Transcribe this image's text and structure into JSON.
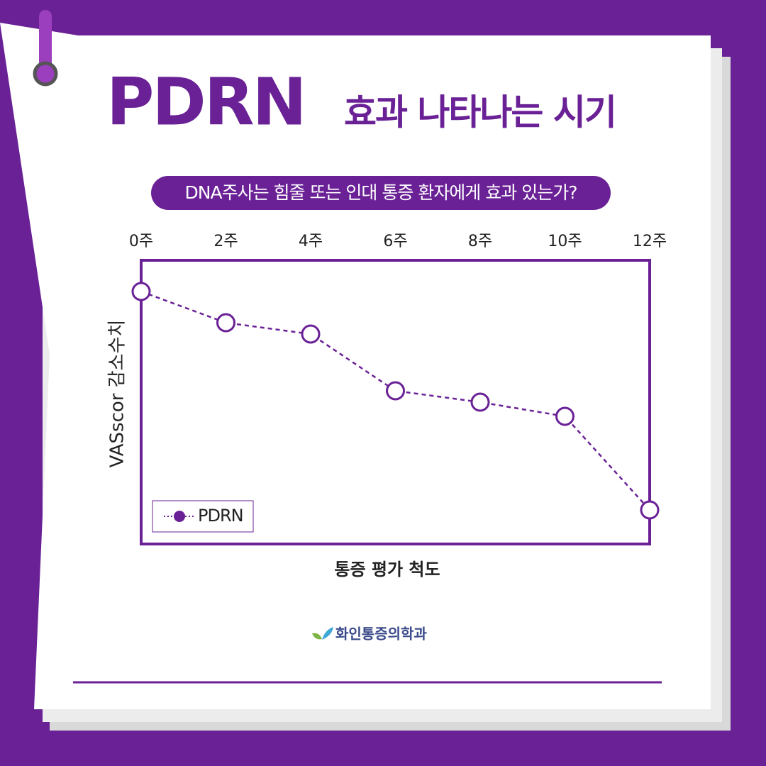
{
  "header": {
    "title": "PDRN",
    "subtitle": "효과 나타나는 시기",
    "question": "DNA주사는 힘줄 또는 인대 통증 환자에게 효과 있는가?"
  },
  "chart_data": {
    "type": "line",
    "x_label": "통증 평가 척도",
    "y_label": "VASscor 감소수치",
    "categories": [
      "0주",
      "2주",
      "4주",
      "6주",
      "8주",
      "10주",
      "12주"
    ],
    "series": [
      {
        "name": "PDRN",
        "color": "#6a2196",
        "values": [
          89,
          78,
          74,
          54,
          50,
          45,
          12
        ]
      }
    ],
    "ylim": [
      0,
      100
    ],
    "legend": "lower left"
  },
  "footer": {
    "logo": "화인통증의학과"
  }
}
